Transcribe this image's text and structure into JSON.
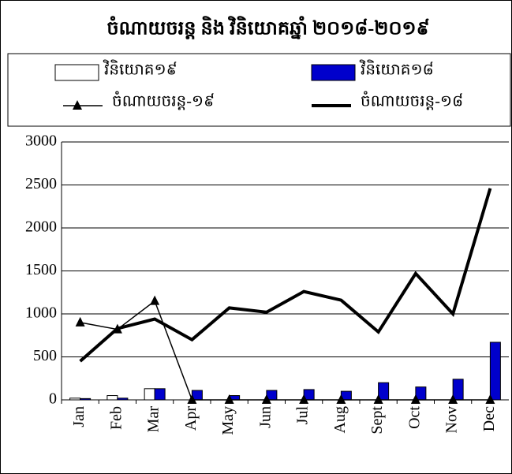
{
  "chart_data": {
    "type": "bar_line",
    "title": "ចំណាយចរន្ត និង វិនិយោគឆ្នាំ ២០១៨-២០១៩",
    "categories": [
      "Jan",
      "Feb",
      "Mar",
      "Apr",
      "May",
      "Jun",
      "Jul",
      "Aug",
      "Sept",
      "Oct",
      "Nov",
      "Dec"
    ],
    "series": [
      {
        "name": "វិនិយោគ១៩",
        "type": "bar",
        "color": "#ffffff",
        "values": [
          20,
          50,
          130,
          0,
          0,
          0,
          0,
          0,
          0,
          0,
          0,
          0
        ]
      },
      {
        "name": "វិនិយោគ១៨",
        "type": "bar",
        "color": "#0000cc",
        "values": [
          15,
          20,
          130,
          110,
          50,
          110,
          120,
          100,
          200,
          150,
          240,
          670
        ]
      },
      {
        "name": "ចំណាយចរន្ត-១៩",
        "type": "line",
        "marker": "triangle",
        "color": "#000000",
        "values": [
          900,
          820,
          1150,
          0,
          0,
          0,
          0,
          0,
          0,
          0,
          0,
          0
        ]
      },
      {
        "name": "ចំណាយចរន្ត-១៨",
        "type": "line",
        "color": "#000000",
        "values": [
          450,
          830,
          940,
          700,
          1070,
          1020,
          1260,
          1160,
          790,
          1470,
          1000,
          2460
        ]
      }
    ],
    "ylim": [
      0,
      3000
    ],
    "yticks": [
      0,
      500,
      1000,
      1500,
      2000,
      2500,
      3000
    ],
    "grid": true,
    "legend": "top"
  }
}
